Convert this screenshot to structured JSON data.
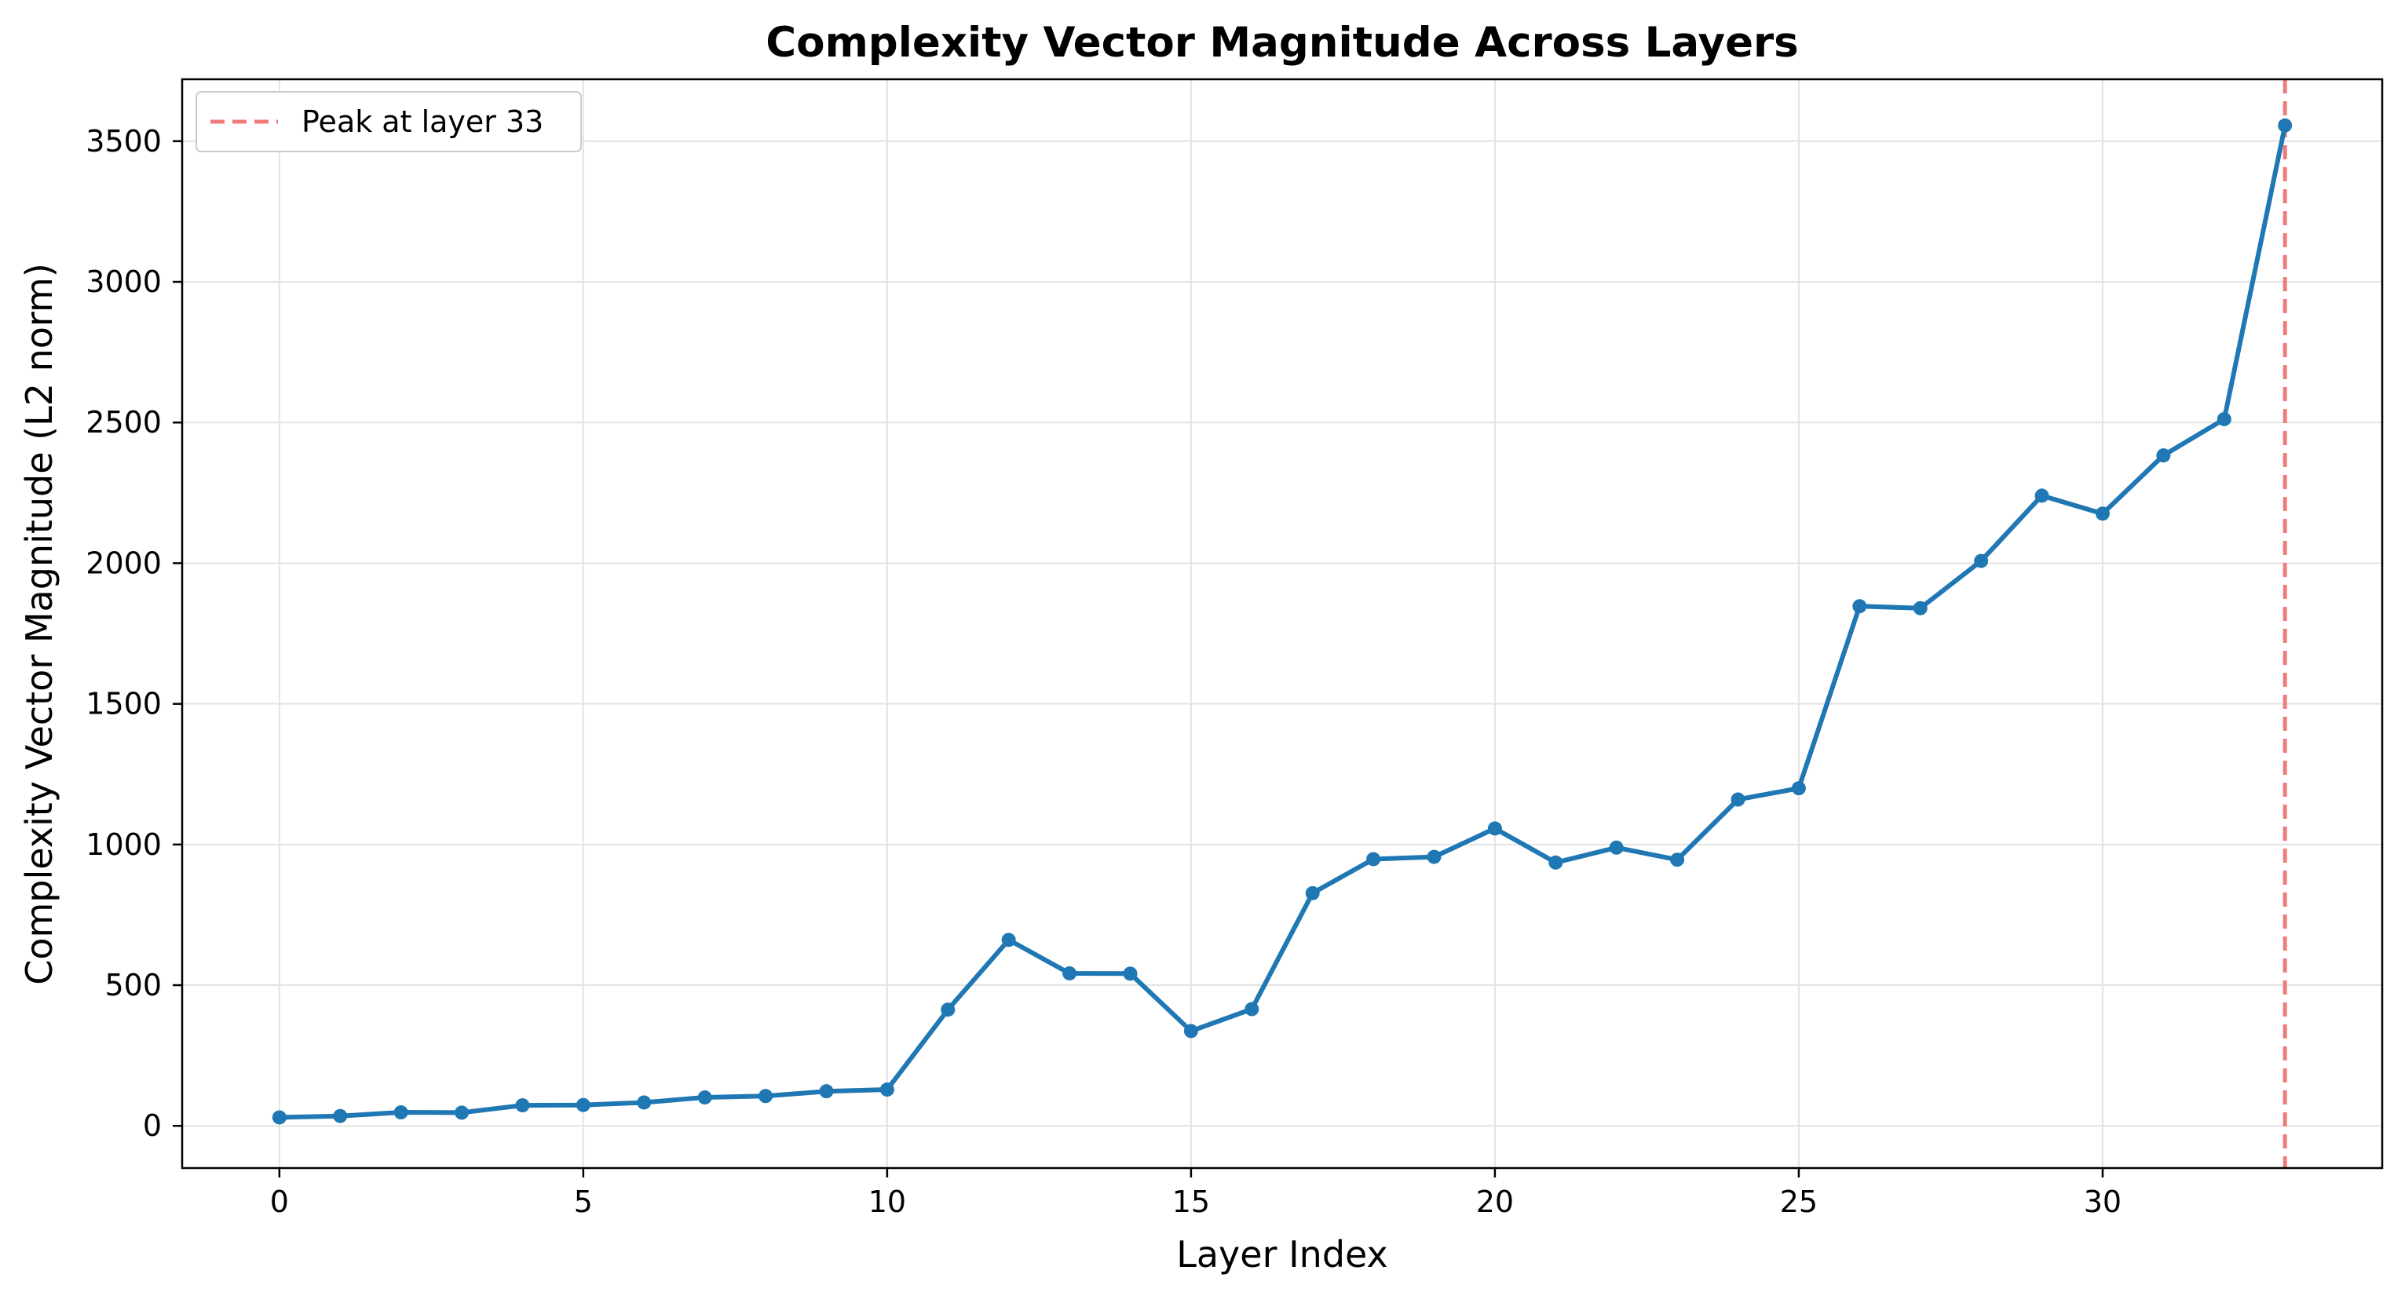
{
  "chart_data": {
    "type": "line",
    "title": "Complexity Vector Magnitude Across Layers",
    "xlabel": "Layer Index",
    "ylabel": "Complexity Vector Magnitude (L2 norm)",
    "xlim": [
      -1.6,
      34.6
    ],
    "ylim": [
      -150,
      3720
    ],
    "xticks": [
      0,
      5,
      10,
      15,
      20,
      25,
      30
    ],
    "yticks": [
      0,
      500,
      1000,
      1500,
      2000,
      2500,
      3000,
      3500
    ],
    "grid": true,
    "legend_position": "upper-left",
    "series": [
      {
        "color": "#1f77b4",
        "x": [
          0,
          1,
          2,
          3,
          4,
          5,
          6,
          7,
          8,
          9,
          10,
          11,
          12,
          13,
          14,
          15,
          16,
          17,
          18,
          19,
          20,
          21,
          22,
          23,
          24,
          25,
          26,
          27,
          28,
          29,
          30,
          31,
          32,
          33
        ],
        "y": [
          30,
          35,
          48,
          47,
          73,
          74,
          83,
          101,
          106,
          123,
          129,
          413,
          661,
          542,
          541,
          337,
          415,
          827,
          948,
          956,
          1057,
          936,
          989,
          946,
          1160,
          1200,
          1847,
          1840,
          2008,
          2240,
          2176,
          2383,
          2512,
          3556
        ]
      }
    ],
    "annotations": [
      {
        "type": "vline",
        "x": 33,
        "label": "Peak at layer 33",
        "color": "#f07b7b",
        "style": "dashed"
      }
    ]
  }
}
